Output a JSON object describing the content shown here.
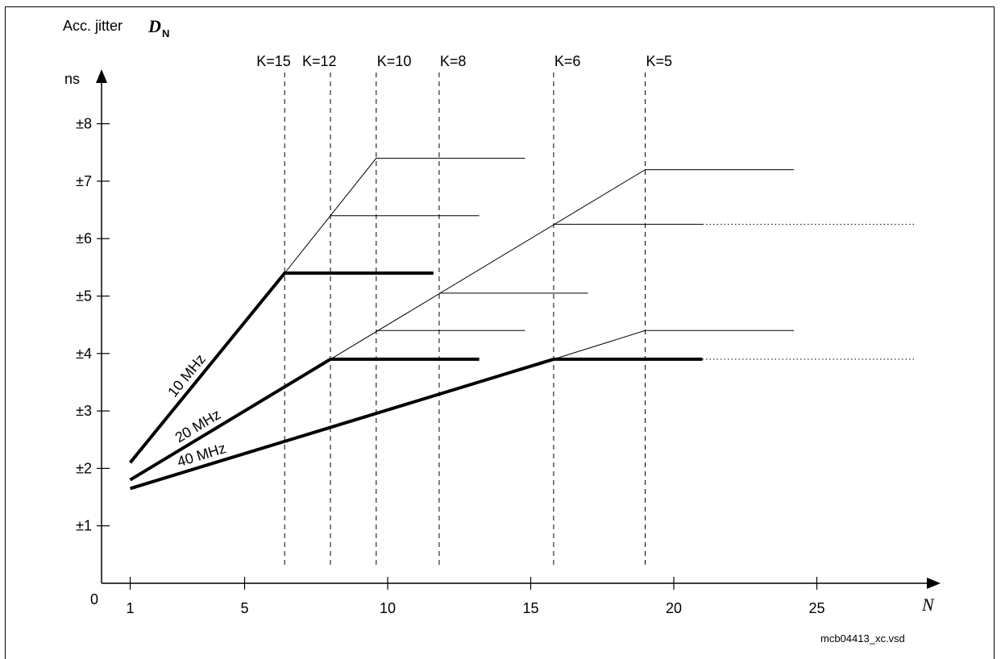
{
  "chart_data": {
    "type": "line",
    "ylabel_text": "Acc. jitter",
    "ylabel_symbol": "D",
    "ylabel_subscript": "N",
    "yunit": "ns",
    "xlabel": "N",
    "origin_label": "0",
    "filename": "mcb04413_xc.vsd",
    "x_ticks": [
      1,
      5,
      10,
      15,
      20,
      25
    ],
    "y_ticks": [
      {
        "value": 1,
        "label": "±1"
      },
      {
        "value": 2,
        "label": "±2"
      },
      {
        "value": 3,
        "label": "±3"
      },
      {
        "value": 4,
        "label": "±4"
      },
      {
        "value": 5,
        "label": "±5"
      },
      {
        "value": 6,
        "label": "±6"
      },
      {
        "value": 7,
        "label": "±7"
      },
      {
        "value": 8,
        "label": "±8"
      }
    ],
    "xlim": [
      0,
      28.5
    ],
    "ylim": [
      0,
      9
    ],
    "k_markers": [
      {
        "label": "K=15",
        "x": 6.4
      },
      {
        "label": "K=12",
        "x": 8.0
      },
      {
        "label": "K=10",
        "x": 9.6
      },
      {
        "label": "K=8",
        "x": 11.8
      },
      {
        "label": "K=6",
        "x": 15.8
      },
      {
        "label": "K=5",
        "x": 19.0
      }
    ],
    "series": [
      {
        "name": "10 MHz",
        "bold": true,
        "points": [
          [
            1,
            2.1
          ],
          [
            6.4,
            5.4
          ],
          [
            11.6,
            5.4
          ]
        ]
      },
      {
        "name": "20 MHz",
        "bold": true,
        "points": [
          [
            1,
            1.8
          ],
          [
            8.0,
            3.9
          ],
          [
            13.2,
            3.9
          ]
        ]
      },
      {
        "name": "40 MHz",
        "bold": true,
        "points": [
          [
            1,
            1.65
          ],
          [
            15.8,
            3.9
          ],
          [
            21.0,
            3.9
          ]
        ]
      }
    ],
    "thin_lines": [
      [
        [
          6.4,
          5.4
        ],
        [
          9.6,
          7.4
        ],
        [
          14.8,
          7.4
        ]
      ],
      [
        [
          8.0,
          6.4
        ],
        [
          13.2,
          6.4
        ]
      ],
      [
        [
          8.0,
          3.9
        ],
        [
          19.0,
          7.2
        ],
        [
          24.2,
          7.2
        ]
      ],
      [
        [
          15.8,
          6.25
        ],
        [
          21.0,
          6.25
        ]
      ],
      [
        [
          11.8,
          5.05
        ],
        [
          17.0,
          5.05
        ]
      ],
      [
        [
          9.6,
          4.4
        ],
        [
          14.8,
          4.4
        ]
      ],
      [
        [
          15.8,
          3.9
        ],
        [
          19.0,
          4.4
        ],
        [
          24.2,
          4.4
        ]
      ]
    ],
    "dotted_lines": [
      [
        [
          21.0,
          6.25
        ],
        [
          28.4,
          6.25
        ]
      ],
      [
        [
          21.0,
          3.9
        ],
        [
          28.4,
          3.9
        ]
      ]
    ]
  }
}
